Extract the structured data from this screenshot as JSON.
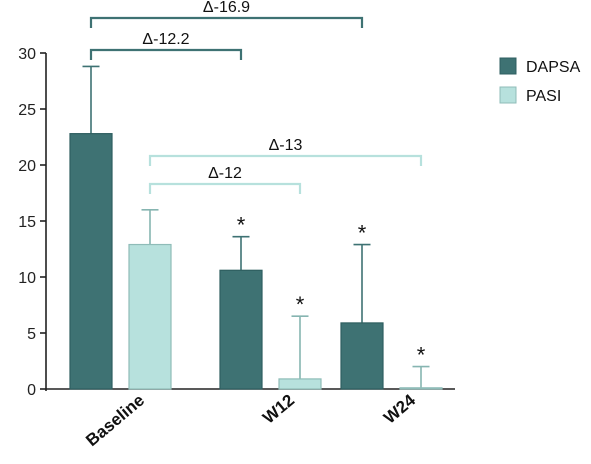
{
  "chart_data": {
    "type": "bar",
    "categories": [
      "Baseline",
      "W12",
      "W24"
    ],
    "series": [
      {
        "name": "DAPSA",
        "values": [
          22.8,
          10.6,
          5.9
        ],
        "errors": [
          6.0,
          3.0,
          7.0
        ],
        "significant": [
          false,
          true,
          true
        ],
        "color": "#3e7273"
      },
      {
        "name": "PASI",
        "values": [
          12.9,
          0.9,
          0.1
        ],
        "errors": [
          3.1,
          5.6,
          1.9
        ],
        "significant": [
          false,
          true,
          true
        ],
        "color": "#b7e1dd"
      }
    ],
    "ylim": [
      0,
      30
    ],
    "yticks": [
      0,
      5,
      10,
      15,
      20,
      25,
      30
    ],
    "xlabel": "",
    "ylabel": "",
    "legend_position": "top-right",
    "significance_marker": "*",
    "brackets": [
      {
        "label": "Δ-16.9",
        "series": "DAPSA",
        "from": "Baseline",
        "to": "W24",
        "color": "#3e7273"
      },
      {
        "label": "Δ-12.2",
        "series": "DAPSA",
        "from": "Baseline",
        "to": "W12",
        "color": "#3e7273"
      },
      {
        "label": "Δ-13",
        "series": "PASI",
        "from": "Baseline",
        "to": "W24",
        "color": "#b7e1dd"
      },
      {
        "label": "Δ-12",
        "series": "PASI",
        "from": "Baseline",
        "to": "W12",
        "color": "#b7e1dd"
      }
    ]
  }
}
